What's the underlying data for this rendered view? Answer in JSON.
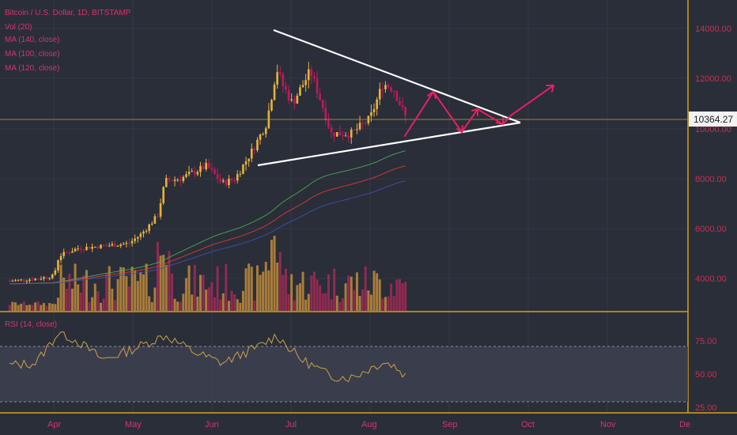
{
  "header": {
    "symbol_title": "Bitcoin / U.S. Dollar, 1D, BITSTAMP",
    "indicators": [
      "Vol (20)",
      "MA (140, close)",
      "MA (100, close)",
      "MA (120, close)"
    ],
    "rsi_title": "RSI (14, close)"
  },
  "price_axis": {
    "ticks": [
      "14000.00",
      "12000.00",
      "10000.00",
      "8000.00",
      "6000.00",
      "4000.00"
    ],
    "current_price_label": "10364.27"
  },
  "rsi_axis": {
    "ticks": [
      "75.00",
      "50.00",
      "25.00"
    ]
  },
  "time_axis": {
    "months": [
      "Apr",
      "May",
      "Jun",
      "Jul",
      "Aug",
      "Sep",
      "Oct",
      "Nov",
      "De"
    ]
  },
  "colors": {
    "background": "#2a2e39",
    "bull_candle": "#e8b33c",
    "bear_candle": "#c2185b",
    "trendline": "#ffffff",
    "projection_arrows": "#e91e63",
    "ma_140": "#4caf50",
    "ma_100": "#e53935",
    "ma_120": "#3f51b5",
    "rsi_line": "#c9a24a",
    "panel_separator": "#d4a017"
  },
  "chart_data": {
    "type": "line",
    "title": "Bitcoin / U.S. Dollar, 1D, BITSTAMP",
    "ylim": [
      2800,
      15000
    ],
    "current_price": 10364.27,
    "price_series": {
      "name": "BTC/USD close",
      "x": [
        "2019-03-15",
        "2019-03-25",
        "2019-04-01",
        "2019-04-03",
        "2019-04-10",
        "2019-04-20",
        "2019-04-30",
        "2019-05-05",
        "2019-05-11",
        "2019-05-14",
        "2019-05-20",
        "2019-05-30",
        "2019-06-05",
        "2019-06-10",
        "2019-06-17",
        "2019-06-22",
        "2019-06-26",
        "2019-06-28",
        "2019-07-02",
        "2019-07-09",
        "2019-07-14",
        "2019-07-17",
        "2019-07-25",
        "2019-08-01",
        "2019-08-06",
        "2019-08-10",
        "2019-08-15"
      ],
      "y": [
        3900,
        3980,
        4100,
        4900,
        5200,
        5300,
        5400,
        5800,
        6500,
        7900,
        8000,
        8500,
        7800,
        8000,
        9200,
        10200,
        12400,
        11800,
        11000,
        12300,
        10800,
        9800,
        9800,
        10400,
        11800,
        11600,
        10364.27
      ]
    },
    "rsi": {
      "name": "RSI (14, close)",
      "ylim": [
        20,
        90
      ],
      "x": [
        "2019-03-15",
        "2019-03-25",
        "2019-04-03",
        "2019-04-10",
        "2019-04-20",
        "2019-05-01",
        "2019-05-14",
        "2019-05-25",
        "2019-06-05",
        "2019-06-20",
        "2019-06-26",
        "2019-07-05",
        "2019-07-17",
        "2019-07-25",
        "2019-08-06",
        "2019-08-10",
        "2019-08-15"
      ],
      "y": [
        58,
        60,
        88,
        80,
        63,
        72,
        85,
        70,
        60,
        76,
        85,
        64,
        48,
        47,
        61,
        58,
        48
      ],
      "levels": [
        75,
        50,
        25
      ]
    },
    "volume_bars": 140,
    "moving_averages": [
      "MA (140, close)",
      "MA (100, close)",
      "MA (120, close)"
    ]
  }
}
